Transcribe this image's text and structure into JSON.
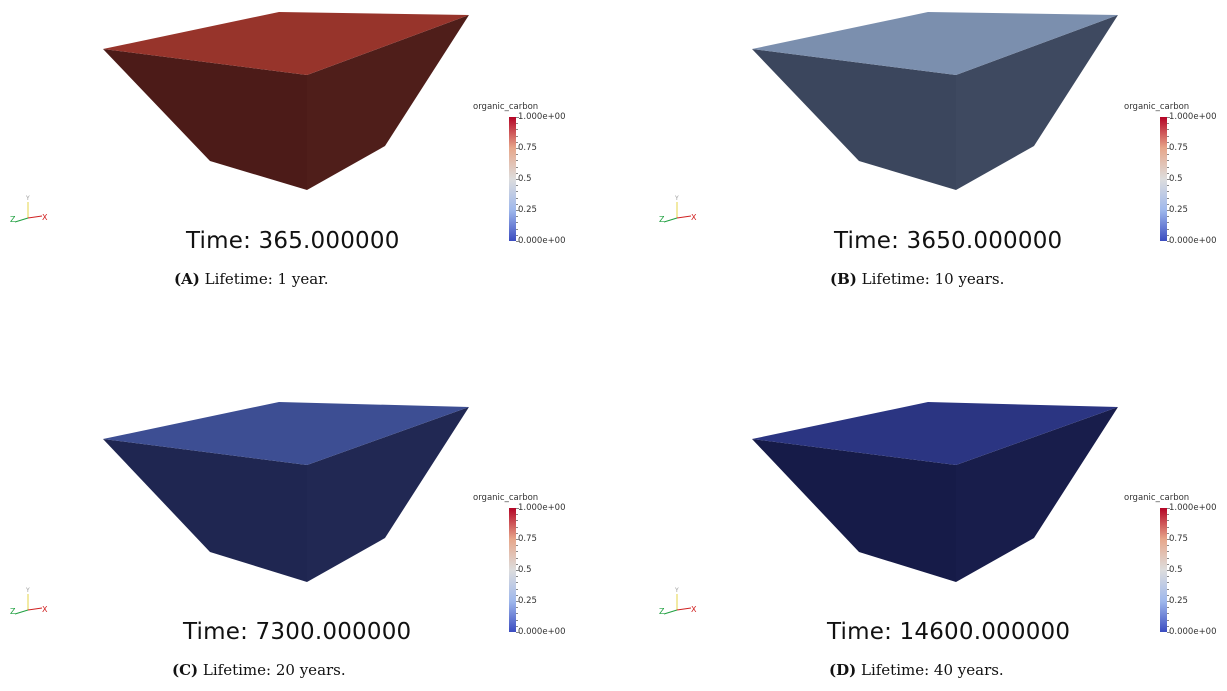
{
  "colorbar": {
    "title": "organic_carbon",
    "ticks": [
      "1.000e+00",
      "0.75",
      "0.5",
      "0.25",
      "0.000e+00"
    ],
    "colors": {
      "top": "#b40426",
      "mid": "#dddddd",
      "bottom": "#3b4cc0"
    }
  },
  "axes_labels": {
    "x": "X",
    "y": "Y",
    "z": "Z"
  },
  "panels": [
    {
      "id": "A",
      "time": "Time: 365.000000",
      "caption_tag": "(A)",
      "caption_text": "Lifetime: 1 year.",
      "colors": {
        "top": "#97342b",
        "left": "#4c1b18",
        "right": "#4f1e1a"
      }
    },
    {
      "id": "B",
      "time": "Time: 3650.000000",
      "caption_tag": "(B)",
      "caption_text": "Lifetime: 10 years.",
      "colors": {
        "top": "#7b8fae",
        "left": "#3b465d",
        "right": "#3e4960"
      }
    },
    {
      "id": "C",
      "time": "Time: 7300.000000",
      "caption_tag": "(C)",
      "caption_text": "Lifetime: 20 years.",
      "colors": {
        "top": "#3d4e93",
        "left": "#1f2651",
        "right": "#212853"
      }
    },
    {
      "id": "D",
      "time": "Time: 14600.000000",
      "caption_tag": "(D)",
      "caption_text": "Lifetime: 40 years.",
      "colors": {
        "top": "#2b3582",
        "left": "#161b48",
        "right": "#181d4b"
      }
    }
  ]
}
